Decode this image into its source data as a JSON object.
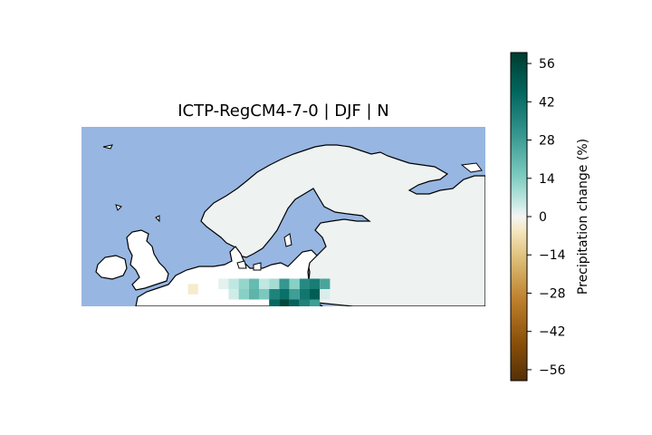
{
  "map": {
    "title": "ICTP-RegCM4-7-0 | DJF | N",
    "colors": {
      "sea": "#97b6e1",
      "land": "#ffffff",
      "coast": "#000000",
      "unchanged": "#eef2f1"
    },
    "grid_cells": [
      {
        "lon": 3,
        "lat": 53.0,
        "value": 2
      },
      {
        "lon": 4,
        "lat": 53.0,
        "value": 6
      },
      {
        "lon": 5,
        "lat": 53.0,
        "value": 12
      },
      {
        "lon": 6,
        "lat": 53.0,
        "value": 20
      },
      {
        "lon": 7,
        "lat": 53.0,
        "value": 6
      },
      {
        "lon": 8,
        "lat": 53.0,
        "value": 10
      },
      {
        "lon": 9,
        "lat": 53.0,
        "value": 30
      },
      {
        "lon": 10,
        "lat": 53.0,
        "value": 14
      },
      {
        "lon": 11,
        "lat": 53.0,
        "value": 34
      },
      {
        "lon": 12,
        "lat": 53.0,
        "value": 38
      },
      {
        "lon": 13,
        "lat": 53.0,
        "value": 26
      },
      {
        "lon": 0,
        "lat": 52.5,
        "value": -4
      },
      {
        "lon": 4,
        "lat": 52.0,
        "value": 4
      },
      {
        "lon": 5,
        "lat": 52.0,
        "value": 14
      },
      {
        "lon": 6,
        "lat": 52.0,
        "value": 22
      },
      {
        "lon": 7,
        "lat": 52.0,
        "value": 16
      },
      {
        "lon": 8,
        "lat": 52.0,
        "value": 36
      },
      {
        "lon": 9,
        "lat": 52.0,
        "value": 42
      },
      {
        "lon": 10,
        "lat": 52.0,
        "value": 28
      },
      {
        "lon": 11,
        "lat": 52.0,
        "value": 40
      },
      {
        "lon": 12,
        "lat": 52.0,
        "value": 48
      },
      {
        "lon": 13,
        "lat": 52.0,
        "value": 3
      },
      {
        "lon": 8,
        "lat": 51.0,
        "value": 44
      },
      {
        "lon": 9,
        "lat": 51.0,
        "value": 56
      },
      {
        "lon": 10,
        "lat": 51.0,
        "value": 46
      },
      {
        "lon": 11,
        "lat": 51.0,
        "value": 36
      },
      {
        "lon": 12,
        "lat": 51.0,
        "value": 28
      }
    ]
  },
  "colorbar": {
    "label": "Precipitation change (%)",
    "ticks": [
      {
        "value": 56,
        "label": "56"
      },
      {
        "value": 42,
        "label": "42"
      },
      {
        "value": 28,
        "label": "28"
      },
      {
        "value": 14,
        "label": "14"
      },
      {
        "value": 0,
        "label": "0"
      },
      {
        "value": -14,
        "label": "−14"
      },
      {
        "value": -28,
        "label": "−28"
      },
      {
        "value": -42,
        "label": "−42"
      },
      {
        "value": -56,
        "label": "−56"
      }
    ],
    "range": [
      -60,
      60
    ]
  }
}
